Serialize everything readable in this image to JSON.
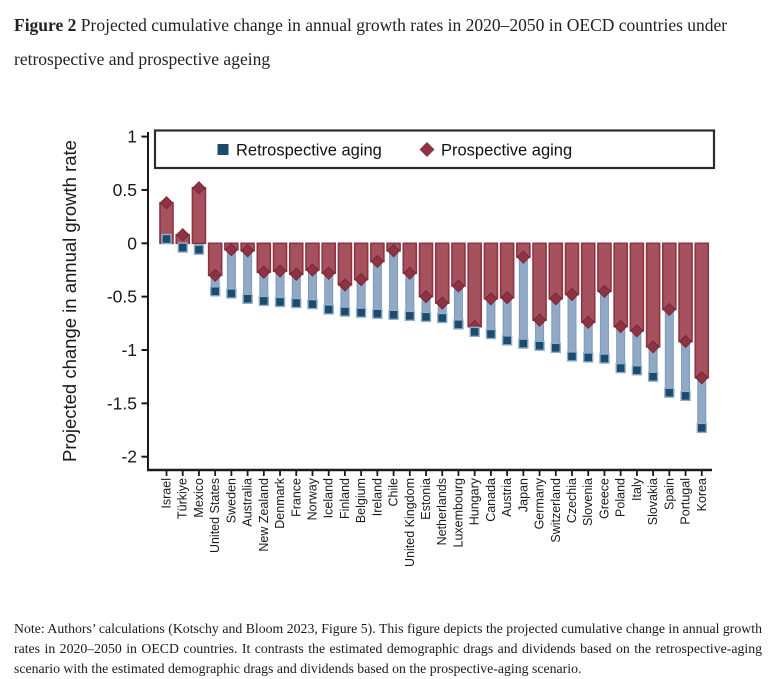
{
  "figure": {
    "label": "Figure 2",
    "title": "Projected cumulative change in annual growth rates in 2020–2050 in OECD countries under retrospective and prospective ageing"
  },
  "note": "Note: Authors’ calculations (Kotschy and Bloom 2023, Figure 5). This figure depicts the projected cumulative change in annual growth rates in 2020–2050 in OECD countries. It contrasts the estimated demographic drags and dividends based on the retrospective-aging scenario with the estimated demographic drags and dividends based on the prospective-aging scenario.",
  "chart_data": {
    "type": "bar",
    "title": "",
    "xlabel": "",
    "ylabel": "Projected change in annual growth rate",
    "ylim": [
      -2,
      1
    ],
    "ytick_values": [
      1,
      0.5,
      0,
      -0.5,
      -1,
      -1.5,
      -2
    ],
    "ytick_labels": [
      "1",
      "0.5",
      "0",
      "-0.5",
      "-1",
      "-1.5",
      "-2"
    ],
    "grid": "off",
    "legend_position": "top-inside-box",
    "categories": [
      "Israel",
      "Türkiye",
      "Mexico",
      "United States",
      "Sweden",
      "Australia",
      "New Zealand",
      "Denmark",
      "France",
      "Norway",
      "Iceland",
      "Finland",
      "Belgium",
      "Ireland",
      "Chile",
      "United Kingdom",
      "Estonia",
      "Netherlands",
      "Luxembourg",
      "Hungary",
      "Canada",
      "Austria",
      "Japan",
      "Germany",
      "Switzerland",
      "Czechia",
      "Slovenia",
      "Greece",
      "Poland",
      "Italy",
      "Slovakia",
      "Spain",
      "Portugal",
      "Korea"
    ],
    "series": [
      {
        "name": "Retrospective aging",
        "marker": "square",
        "values": [
          0.04,
          -0.04,
          -0.06,
          -0.45,
          -0.47,
          -0.52,
          -0.54,
          -0.55,
          -0.56,
          -0.57,
          -0.62,
          -0.64,
          -0.65,
          -0.66,
          -0.67,
          -0.68,
          -0.69,
          -0.7,
          -0.76,
          -0.83,
          -0.85,
          -0.91,
          -0.94,
          -0.96,
          -0.98,
          -1.06,
          -1.07,
          -1.08,
          -1.17,
          -1.19,
          -1.25,
          -1.4,
          -1.43,
          -1.73
        ]
      },
      {
        "name": "Prospective aging",
        "marker": "diamond",
        "values": [
          0.38,
          0.08,
          0.52,
          -0.3,
          -0.06,
          -0.07,
          -0.27,
          -0.26,
          -0.29,
          -0.25,
          -0.28,
          -0.39,
          -0.34,
          -0.17,
          -0.07,
          -0.28,
          -0.5,
          -0.56,
          -0.4,
          -0.78,
          -0.52,
          -0.51,
          -0.13,
          -0.72,
          -0.52,
          -0.48,
          -0.74,
          -0.45,
          -0.78,
          -0.82,
          -0.97,
          -0.62,
          -0.92,
          -1.26
        ]
      }
    ],
    "colors": {
      "retrospective_bar": "#92A9C6",
      "retrospective_bar_edge": "#7E99BA",
      "retrospective_marker": "#1E4A6D",
      "retrospective_marker_edge": "#8FB0CC",
      "prospective_bar": "#A5525E",
      "prospective_bar_edge": "#8E3344",
      "prospective_marker": "#8E3344",
      "axis": "#1A1A1A",
      "legend_border": "#2B2B2B"
    }
  }
}
